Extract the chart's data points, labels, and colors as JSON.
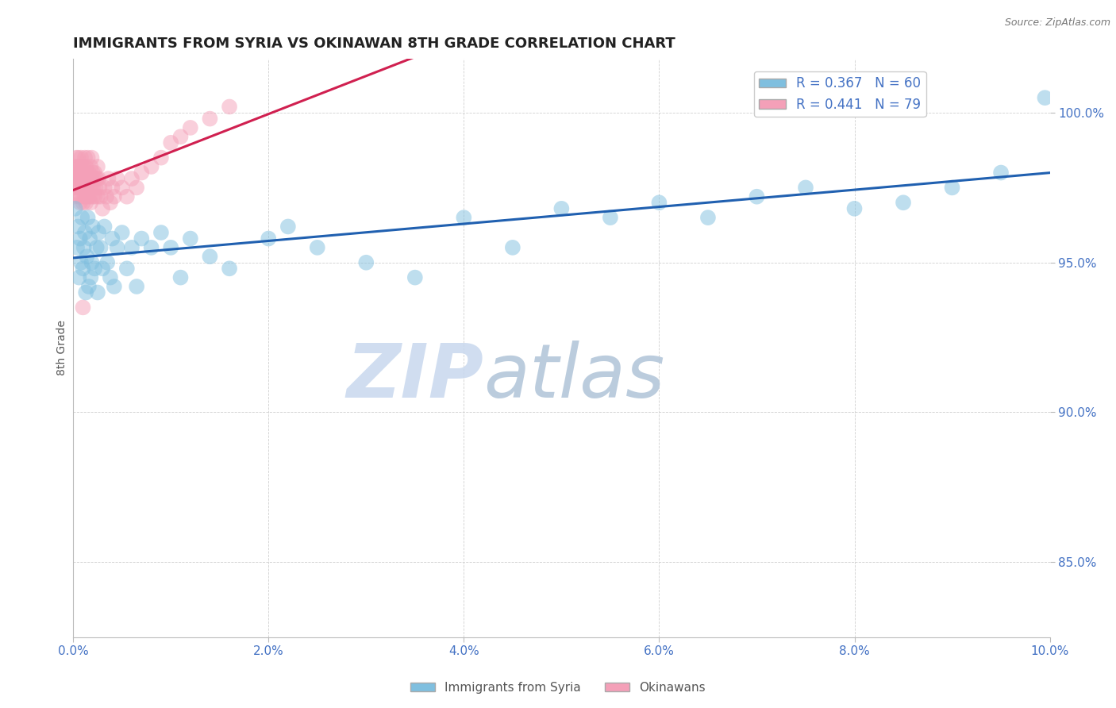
{
  "title": "IMMIGRANTS FROM SYRIA VS OKINAWAN 8TH GRADE CORRELATION CHART",
  "source_text": "Source: ZipAtlas.com",
  "ylabel": "8th Grade",
  "legend_label1": "Immigrants from Syria",
  "legend_label2": "Okinawans",
  "R1": 0.367,
  "N1": 60,
  "R2": 0.441,
  "N2": 79,
  "xlim": [
    0.0,
    10.0
  ],
  "ylim": [
    82.5,
    101.8
  ],
  "yticks": [
    85.0,
    90.0,
    95.0,
    100.0
  ],
  "ytick_labels": [
    "85.0%",
    "90.0%",
    "95.0%",
    "100.0%"
  ],
  "xticks": [
    0.0,
    2.0,
    4.0,
    6.0,
    8.0,
    10.0
  ],
  "xtick_labels": [
    "0.0%",
    "2.0%",
    "4.0%",
    "6.0%",
    "8.0%",
    "10.0%"
  ],
  "color_blue": "#7fbfdf",
  "color_pink": "#f4a0b8",
  "color_blue_line": "#2060b0",
  "color_pink_line": "#d02050",
  "watermark_zip": "ZIP",
  "watermark_atlas": "atlas",
  "watermark_color_zip": "#c8d8ee",
  "watermark_color_atlas": "#b0c4d8",
  "background_color": "#ffffff",
  "blue_x": [
    0.02,
    0.04,
    0.05,
    0.06,
    0.07,
    0.08,
    0.09,
    0.1,
    0.11,
    0.12,
    0.13,
    0.14,
    0.15,
    0.16,
    0.17,
    0.18,
    0.19,
    0.2,
    0.22,
    0.24,
    0.25,
    0.26,
    0.28,
    0.3,
    0.32,
    0.35,
    0.38,
    0.4,
    0.42,
    0.45,
    0.5,
    0.55,
    0.6,
    0.65,
    0.7,
    0.8,
    0.9,
    1.0,
    1.1,
    1.2,
    1.4,
    1.6,
    2.0,
    2.2,
    2.5,
    3.0,
    3.5,
    4.0,
    4.5,
    5.0,
    5.5,
    6.0,
    6.5,
    7.0,
    7.5,
    8.0,
    8.5,
    9.0,
    9.5,
    9.95
  ],
  "blue_y": [
    96.8,
    95.5,
    96.2,
    94.5,
    95.8,
    95.0,
    96.5,
    94.8,
    95.5,
    96.0,
    94.0,
    95.2,
    96.5,
    94.2,
    95.8,
    94.5,
    95.0,
    96.2,
    94.8,
    95.5,
    94.0,
    96.0,
    95.5,
    94.8,
    96.2,
    95.0,
    94.5,
    95.8,
    94.2,
    95.5,
    96.0,
    94.8,
    95.5,
    94.2,
    95.8,
    95.5,
    96.0,
    95.5,
    94.5,
    95.8,
    95.2,
    94.8,
    95.8,
    96.2,
    95.5,
    95.0,
    94.5,
    96.5,
    95.5,
    96.8,
    96.5,
    97.0,
    96.5,
    97.2,
    97.5,
    96.8,
    97.0,
    97.5,
    98.0,
    100.5
  ],
  "pink_x": [
    0.01,
    0.01,
    0.02,
    0.02,
    0.03,
    0.03,
    0.04,
    0.04,
    0.05,
    0.05,
    0.05,
    0.06,
    0.06,
    0.07,
    0.07,
    0.07,
    0.08,
    0.08,
    0.08,
    0.09,
    0.09,
    0.1,
    0.1,
    0.1,
    0.11,
    0.11,
    0.12,
    0.12,
    0.12,
    0.13,
    0.13,
    0.14,
    0.14,
    0.15,
    0.15,
    0.15,
    0.16,
    0.16,
    0.17,
    0.17,
    0.18,
    0.18,
    0.18,
    0.19,
    0.19,
    0.2,
    0.2,
    0.2,
    0.21,
    0.22,
    0.22,
    0.23,
    0.24,
    0.25,
    0.25,
    0.26,
    0.27,
    0.28,
    0.3,
    0.32,
    0.34,
    0.36,
    0.38,
    0.4,
    0.42,
    0.45,
    0.5,
    0.55,
    0.6,
    0.65,
    0.7,
    0.8,
    0.9,
    1.0,
    1.1,
    1.2,
    1.4,
    1.6,
    0.1
  ],
  "pink_y": [
    97.2,
    98.0,
    97.5,
    98.2,
    97.8,
    98.5,
    97.5,
    98.0,
    98.2,
    97.8,
    98.5,
    97.2,
    98.0,
    97.5,
    98.2,
    97.0,
    97.8,
    98.5,
    97.2,
    98.0,
    97.5,
    97.8,
    98.2,
    97.0,
    97.5,
    98.0,
    97.2,
    98.5,
    97.8,
    97.0,
    98.2,
    97.5,
    98.0,
    97.2,
    98.5,
    97.8,
    97.5,
    98.0,
    97.2,
    97.8,
    97.5,
    98.2,
    97.0,
    97.8,
    98.5,
    97.2,
    98.0,
    97.5,
    97.8,
    97.2,
    98.0,
    97.5,
    97.8,
    97.2,
    98.2,
    97.8,
    97.5,
    97.2,
    96.8,
    97.5,
    97.2,
    97.8,
    97.0,
    97.5,
    97.2,
    97.8,
    97.5,
    97.2,
    97.8,
    97.5,
    98.0,
    98.2,
    98.5,
    99.0,
    99.2,
    99.5,
    99.8,
    100.2,
    93.5
  ]
}
